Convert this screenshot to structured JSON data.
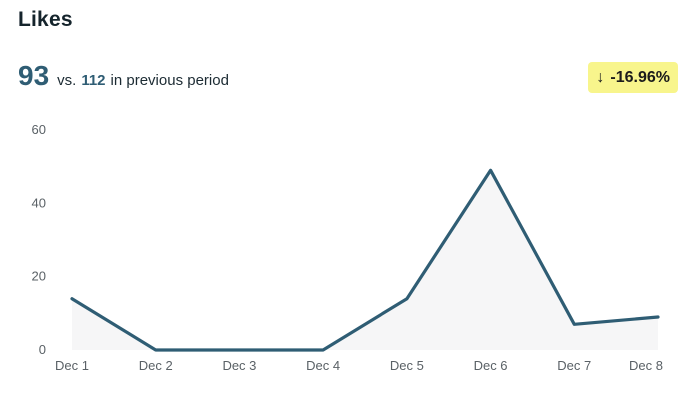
{
  "header": {
    "title": "Likes"
  },
  "summary": {
    "current_value": "93",
    "vs_label": "vs.",
    "previous_value": "112",
    "suffix": "in previous period"
  },
  "change_badge": {
    "icon": "arrow-down-icon",
    "value": "-16.96%",
    "color": "#f8f58c"
  },
  "chart_data": {
    "type": "area",
    "categories": [
      "Dec 1",
      "Dec 2",
      "Dec 3",
      "Dec 4",
      "Dec 5",
      "Dec 6",
      "Dec 7",
      "Dec 8"
    ],
    "series": [
      {
        "values": [
          14,
          0,
          0,
          0,
          14,
          49,
          7,
          9
        ],
        "color": "#2f5d74",
        "fill": "#f6f6f7"
      }
    ],
    "yticks": [
      0,
      20,
      40,
      60
    ],
    "ylim": [
      0,
      60
    ],
    "grid": false,
    "legend": "none"
  }
}
